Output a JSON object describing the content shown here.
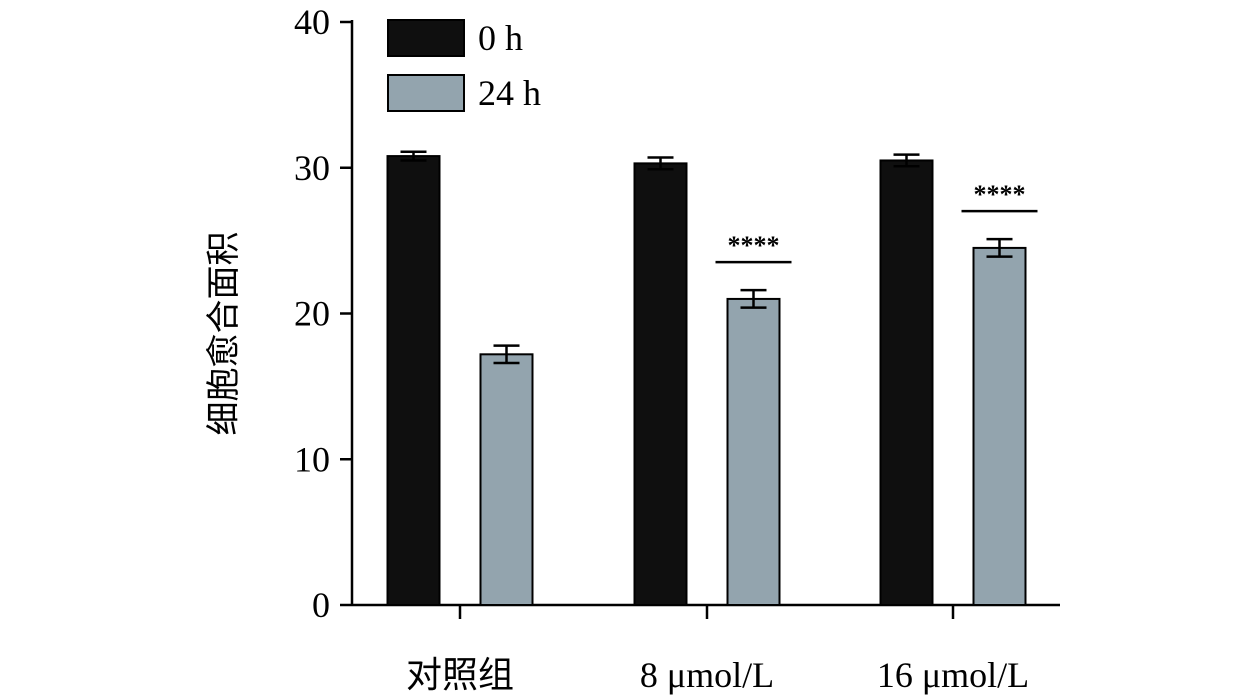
{
  "chart_data": {
    "type": "bar",
    "title": "",
    "xlabel": "",
    "ylabel": "细胞愈合面积",
    "ylim": [
      0,
      40
    ],
    "yticks": [
      0,
      10,
      20,
      30,
      40
    ],
    "categories": [
      "对照组",
      "8 μmol/L",
      "16 μmol/L"
    ],
    "series": [
      {
        "name": "0 h",
        "color": "#0f0f0f",
        "values": [
          30.8,
          30.3,
          30.5
        ],
        "errors": [
          0.3,
          0.4,
          0.4
        ]
      },
      {
        "name": "24 h",
        "color": "#93a4ae",
        "values": [
          17.2,
          21.0,
          24.5
        ],
        "errors": [
          0.6,
          0.6,
          0.6
        ]
      }
    ],
    "significance": [
      {
        "category": "8 μmol/L",
        "label": "****"
      },
      {
        "category": "16 μmol/L",
        "label": "****"
      }
    ],
    "legend_position": "top-left",
    "grid": false
  }
}
